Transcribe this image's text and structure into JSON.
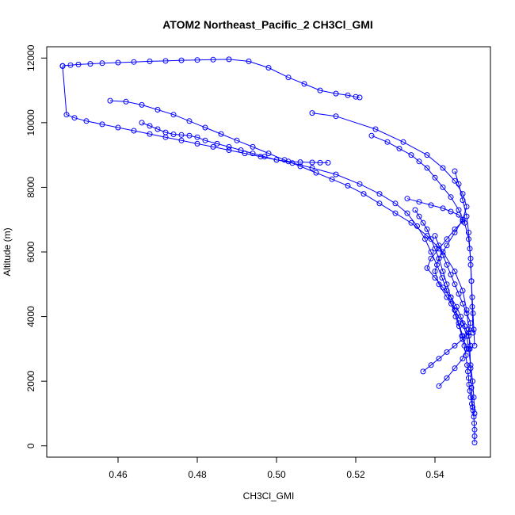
{
  "chart_data": {
    "type": "line",
    "title": "ATOM2 Northeast_Pacific_2 CH3Cl_GMI",
    "xlabel": "CH3Cl_GMI",
    "ylabel": "Altitude (m)",
    "xlim": [
      0.442,
      0.554
    ],
    "ylim": [
      -350,
      12350
    ],
    "x_ticks": [
      0.46,
      0.48,
      0.5,
      0.52,
      0.54
    ],
    "x_tick_labels": [
      "0.46",
      "0.48",
      "0.50",
      "0.52",
      "0.54"
    ],
    "y_ticks": [
      0,
      2000,
      4000,
      6000,
      8000,
      10000,
      12000
    ],
    "y_tick_labels": [
      "0",
      "2000",
      "4000",
      "6000",
      "8000",
      "10000",
      "12000"
    ],
    "grid": false,
    "legend": "none",
    "color": "#0000ff",
    "marker": "open-circle",
    "series": [
      {
        "x": [
          0.55,
          0.55,
          0.55,
          0.5499,
          0.5498,
          0.5496,
          0.5493,
          0.549,
          0.5488,
          0.5486,
          0.5485,
          0.5483,
          0.5481,
          0.5478,
          0.5474,
          0.5468,
          0.5461,
          0.5452,
          0.5441,
          0.543,
          0.5418,
          0.5405,
          0.539,
          0.5375,
          0.5355,
          0.533,
          0.53,
          0.526,
          0.521,
          0.515,
          0.509,
          0.504,
          0.5,
          0.496,
          0.492,
          0.488,
          0.484,
          0.48,
          0.476,
          0.472,
          0.468,
          0.464,
          0.46,
          0.456,
          0.452,
          0.449,
          0.447,
          0.446
        ],
        "y": [
          100,
          300,
          500,
          700,
          900,
          1100,
          1300,
          1500,
          1700,
          1900,
          2100,
          2300,
          2500,
          2800,
          3100,
          3400,
          3700,
          4000,
          4400,
          4800,
          5200,
          5600,
          6000,
          6400,
          6800,
          7200,
          7500,
          7800,
          8100,
          8400,
          8600,
          8750,
          8850,
          8950,
          9050,
          9150,
          9250,
          9350,
          9450,
          9550,
          9650,
          9750,
          9850,
          9950,
          10050,
          10150,
          10250,
          11750
        ]
      },
      {
        "x": [
          0.446,
          0.448,
          0.45,
          0.453,
          0.456,
          0.46,
          0.464,
          0.468,
          0.472,
          0.476,
          0.48,
          0.484,
          0.488,
          0.493,
          0.498,
          0.503,
          0.507,
          0.511,
          0.515,
          0.518,
          0.52,
          0.521
        ],
        "y": [
          11760,
          11780,
          11800,
          11820,
          11840,
          11860,
          11880,
          11900,
          11910,
          11930,
          11940,
          11950,
          11960,
          11900,
          11700,
          11400,
          11200,
          11000,
          10900,
          10850,
          10800,
          10780
        ]
      },
      {
        "x": [
          0.458,
          0.462,
          0.466,
          0.47,
          0.474,
          0.478,
          0.482,
          0.486,
          0.49,
          0.494,
          0.498,
          0.502,
          0.506,
          0.51,
          0.514,
          0.518,
          0.522,
          0.526,
          0.53,
          0.534,
          0.538,
          0.542,
          0.545,
          0.547,
          0.548,
          0.5485,
          0.5488,
          0.549,
          0.5492,
          0.5495
        ],
        "y": [
          10680,
          10650,
          10550,
          10400,
          10250,
          10050,
          9850,
          9650,
          9450,
          9250,
          9050,
          8850,
          8650,
          8450,
          8250,
          8050,
          7800,
          7500,
          7200,
          6900,
          6500,
          6000,
          5400,
          4800,
          4200,
          3600,
          3000,
          2400,
          1800,
          1200
        ]
      },
      {
        "x": [
          0.466,
          0.468,
          0.47,
          0.472,
          0.474,
          0.476,
          0.478,
          0.48,
          0.482,
          0.485,
          0.488,
          0.491,
          0.494,
          0.497,
          0.5,
          0.503,
          0.506,
          0.509,
          0.511,
          0.513
        ],
        "y": [
          10000,
          9900,
          9800,
          9700,
          9640,
          9620,
          9600,
          9550,
          9450,
          9350,
          9250,
          9150,
          9050,
          8950,
          8850,
          8800,
          8780,
          8770,
          8760,
          8760
        ]
      },
      {
        "x": [
          0.509,
          0.515,
          0.525,
          0.532,
          0.538,
          0.542,
          0.545,
          0.547,
          0.548,
          0.547,
          0.545,
          0.543,
          0.541,
          0.54,
          0.541,
          0.543,
          0.545,
          0.547,
          0.548,
          0.5485,
          0.549,
          0.5495,
          0.5498,
          0.55
        ],
        "y": [
          10300,
          10200,
          9800,
          9400,
          9000,
          8600,
          8200,
          7800,
          7400,
          7000,
          6600,
          6200,
          5800,
          5400,
          5000,
          4600,
          4200,
          3800,
          3400,
          3000,
          2500,
          2000,
          1500,
          1000
        ]
      },
      {
        "x": [
          0.524,
          0.528,
          0.531,
          0.534,
          0.536,
          0.538,
          0.54,
          0.542,
          0.544,
          0.546,
          0.5475,
          0.5485,
          0.549,
          0.5492,
          0.5494,
          0.5496
        ],
        "y": [
          9600,
          9400,
          9200,
          9000,
          8800,
          8600,
          8300,
          8000,
          7700,
          7300,
          6900,
          6400,
          5800,
          5100,
          4300,
          3500
        ]
      },
      {
        "x": [
          0.533,
          0.536,
          0.539,
          0.542,
          0.544,
          0.546,
          0.547,
          0.545,
          0.543,
          0.541,
          0.539,
          0.538,
          0.54,
          0.542,
          0.544,
          0.5455,
          0.5465,
          0.5475,
          0.5485,
          0.549
        ],
        "y": [
          7650,
          7550,
          7450,
          7350,
          7250,
          7150,
          6950,
          6700,
          6400,
          6100,
          5800,
          5500,
          5200,
          4900,
          4600,
          4300,
          4000,
          3700,
          3400,
          3100
        ]
      },
      {
        "x": [
          0.537,
          0.539,
          0.541,
          0.543,
          0.545,
          0.547,
          0.5485,
          0.549,
          0.548,
          0.547,
          0.546,
          0.545,
          0.544,
          0.543,
          0.542,
          0.541,
          0.54
        ],
        "y": [
          2300,
          2500,
          2700,
          2900,
          3100,
          3300,
          3500,
          3800,
          4100,
          4400,
          4700,
          5000,
          5300,
          5600,
          5900,
          6200,
          6500
        ]
      },
      {
        "x": [
          0.541,
          0.543,
          0.545,
          0.547,
          0.548,
          0.547,
          0.546,
          0.545,
          0.544,
          0.543,
          0.542,
          0.541,
          0.54,
          0.539,
          0.538,
          0.537,
          0.536,
          0.535
        ],
        "y": [
          1850,
          2100,
          2400,
          2700,
          3000,
          3400,
          3800,
          4200,
          4600,
          5000,
          5400,
          5800,
          6100,
          6400,
          6700,
          6900,
          7100,
          7300
        ]
      },
      {
        "x": [
          0.545,
          0.546,
          0.547,
          0.548,
          0.5485,
          0.5488,
          0.549,
          0.5492,
          0.5494,
          0.5496,
          0.5498,
          0.55
        ],
        "y": [
          8500,
          8100,
          7600,
          7100,
          6600,
          6100,
          5600,
          5100,
          4600,
          4100,
          3600,
          3100
        ]
      }
    ]
  }
}
